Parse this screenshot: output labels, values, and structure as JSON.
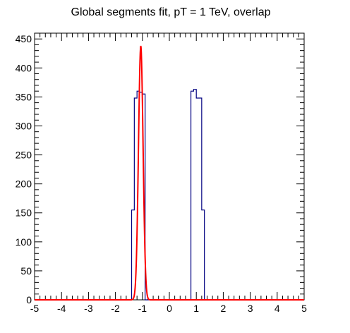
{
  "chart_data": {
    "type": "histogram",
    "title": "Global segments fit, pT = 1 TeV, overlap",
    "xlabel": "",
    "ylabel": "",
    "xlim": [
      -5,
      5
    ],
    "ylim": [
      0,
      460
    ],
    "x_ticks": [
      "-5",
      "-4",
      "-3",
      "-2",
      "-1",
      "0",
      "1",
      "2",
      "3",
      "4",
      "5"
    ],
    "y_ticks": [
      "0",
      "50",
      "100",
      "150",
      "200",
      "250",
      "300",
      "350",
      "400",
      "450"
    ],
    "grid": false,
    "legend": "none",
    "histogram": {
      "color": "#000080",
      "bin_width": 0.1,
      "bins": [
        {
          "x0": -1.4,
          "value": 155
        },
        {
          "x0": -1.3,
          "value": 348
        },
        {
          "x0": -1.2,
          "value": 360
        },
        {
          "x0": -1.1,
          "value": 358
        },
        {
          "x0": -1.0,
          "value": 355
        },
        {
          "x0": 0.8,
          "value": 360
        },
        {
          "x0": 0.9,
          "value": 363
        },
        {
          "x0": 1.0,
          "value": 348
        },
        {
          "x0": 1.1,
          "value": 348
        },
        {
          "x0": 1.2,
          "value": 155
        }
      ]
    },
    "fit": {
      "type": "gaussian",
      "color": "#ff0000",
      "amplitude": 438,
      "mean": -1.06,
      "sigma": 0.085,
      "x_range": [
        -5,
        5
      ]
    }
  }
}
